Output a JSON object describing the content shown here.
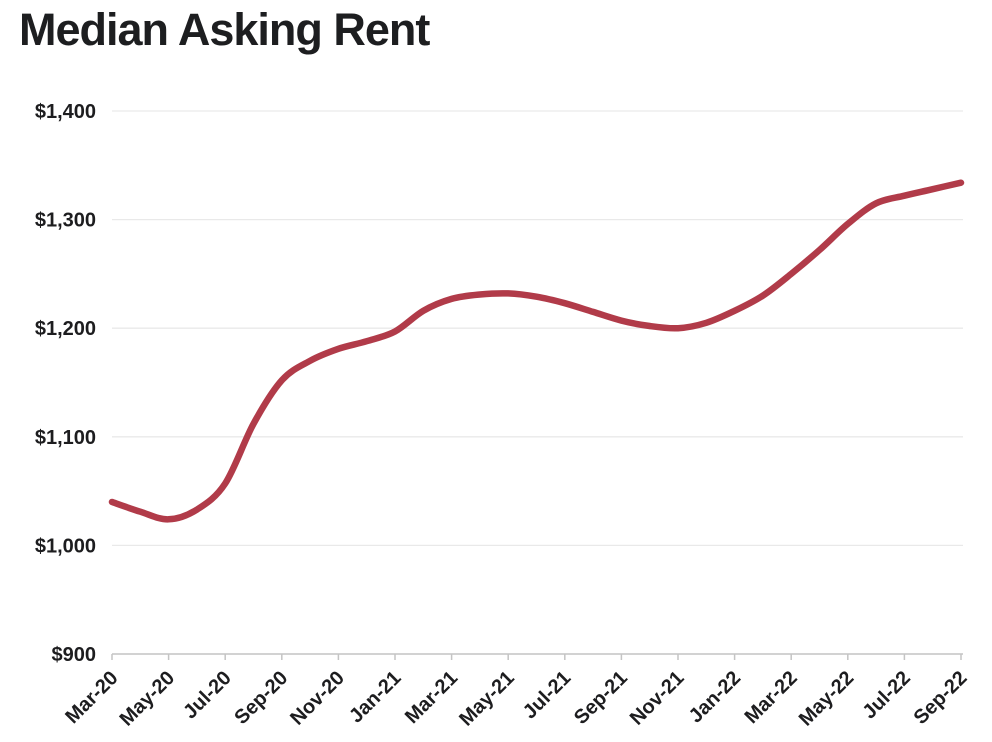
{
  "page": {
    "background": "#ffffff"
  },
  "chart_data": {
    "type": "line",
    "title": "Median Asking Rent",
    "xlabel": "",
    "ylabel": "",
    "grid": true,
    "legend": "none",
    "ylim": [
      900,
      1400
    ],
    "y_ticks": [
      900,
      1000,
      1100,
      1200,
      1300,
      1400
    ],
    "y_tick_labels": [
      "$900",
      "$1,000",
      "$1,100",
      "$1,200",
      "$1,300",
      "$1,400"
    ],
    "x": [
      "Mar-20",
      "Apr-20",
      "May-20",
      "Jun-20",
      "Jul-20",
      "Aug-20",
      "Sep-20",
      "Oct-20",
      "Nov-20",
      "Dec-20",
      "Jan-21",
      "Feb-21",
      "Mar-21",
      "Apr-21",
      "May-21",
      "Jun-21",
      "Jul-21",
      "Aug-21",
      "Sep-21",
      "Oct-21",
      "Nov-21",
      "Dec-21",
      "Jan-22",
      "Feb-22",
      "Mar-22",
      "Apr-22",
      "May-22",
      "Jun-22",
      "Jul-22",
      "Aug-22",
      "Sep-22"
    ],
    "x_tick_labels": [
      "Mar-20",
      "May-20",
      "Jul-20",
      "Sep-20",
      "Nov-20",
      "Jan-21",
      "Mar-21",
      "May-21",
      "Jul-21",
      "Sep-21",
      "Nov-21",
      "Jan-22",
      "Mar-22",
      "May-22",
      "Jul-22",
      "Sep-22"
    ],
    "series": [
      {
        "name": "Median Asking Rent",
        "values": [
          1040,
          1031,
          1024,
          1033,
          1057,
          1112,
          1152,
          1170,
          1181,
          1188,
          1197,
          1216,
          1227,
          1231,
          1232,
          1229,
          1223,
          1215,
          1207,
          1202,
          1200,
          1205,
          1216,
          1230,
          1250,
          1272,
          1296,
          1315,
          1322,
          1328,
          1334
        ]
      }
    ],
    "colors": {
      "line": "#b13b49",
      "grid": "#e9e9e9",
      "axis": "#c4c4c4",
      "tick_label": "#1d1d1f",
      "title": "#1d1e20"
    }
  }
}
